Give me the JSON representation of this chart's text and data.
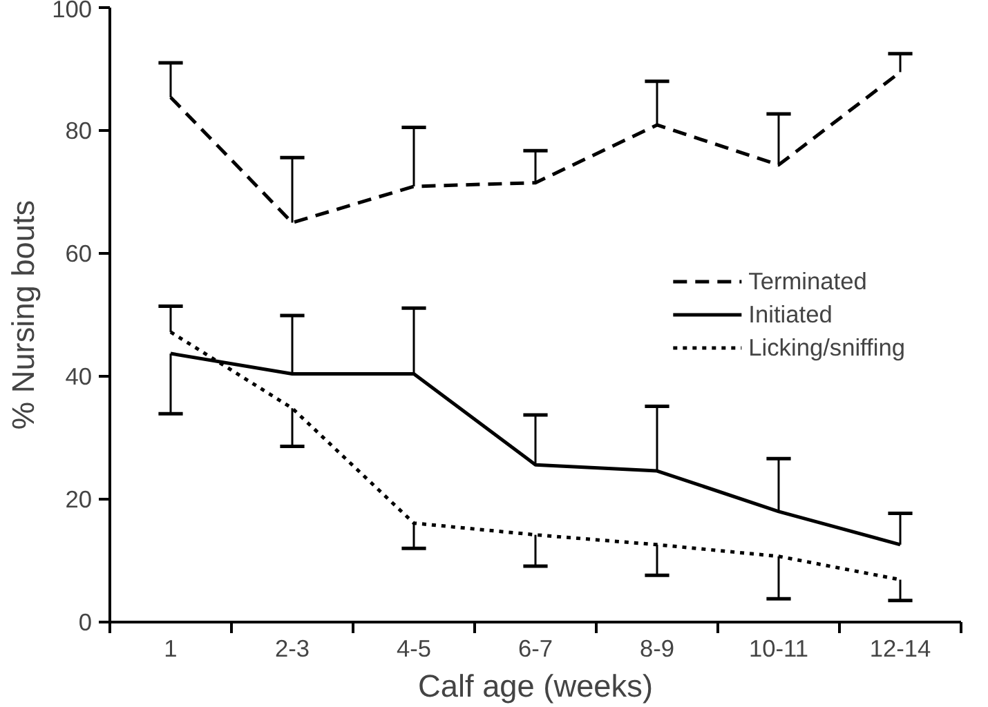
{
  "chart_data": {
    "type": "line",
    "xlabel": "Calf age (weeks)",
    "ylabel": "% Nursing bouts",
    "categories": [
      "1",
      "2-3",
      "4-5",
      "6-7",
      "8-9",
      "10-11",
      "12-14"
    ],
    "ylim": [
      0,
      100
    ],
    "yticks": [
      0,
      20,
      40,
      60,
      80,
      100
    ],
    "grid": false,
    "legend": "right",
    "marker": "none",
    "series": [
      {
        "name": "Terminated",
        "color": "#000000",
        "line_style": "dashed",
        "values": [
          85.4,
          65.0,
          70.9,
          71.5,
          80.9,
          74.4,
          89.5
        ],
        "errors": [
          [
            85.4,
            91.0
          ],
          [
            65.0,
            75.6
          ],
          [
            70.9,
            80.5
          ],
          [
            71.5,
            76.7
          ],
          [
            80.9,
            88.0
          ],
          [
            74.4,
            82.7
          ],
          [
            89.5,
            92.5
          ]
        ]
      },
      {
        "name": "Initiated",
        "color": "#000000",
        "line_style": "solid",
        "values": [
          43.7,
          40.4,
          40.4,
          25.6,
          24.6,
          18.0,
          12.6
        ],
        "errors": [
          [
            33.9,
            43.7
          ],
          [
            40.4,
            49.9
          ],
          [
            40.4,
            51.1
          ],
          [
            25.6,
            33.7
          ],
          [
            24.6,
            35.1
          ],
          [
            18.0,
            26.6
          ],
          [
            12.6,
            17.7
          ]
        ]
      },
      {
        "name": "Licking/sniffing",
        "color": "#000000",
        "line_style": "dotted",
        "values": [
          47.2,
          34.8,
          16.1,
          14.2,
          12.6,
          10.7,
          6.9
        ],
        "errors": [
          [
            47.2,
            51.4
          ],
          [
            28.6,
            34.8
          ],
          [
            12.0,
            16.1
          ],
          [
            9.1,
            14.2
          ],
          [
            7.6,
            12.6
          ],
          [
            3.8,
            10.7
          ],
          [
            3.5,
            6.9
          ]
        ]
      }
    ]
  }
}
